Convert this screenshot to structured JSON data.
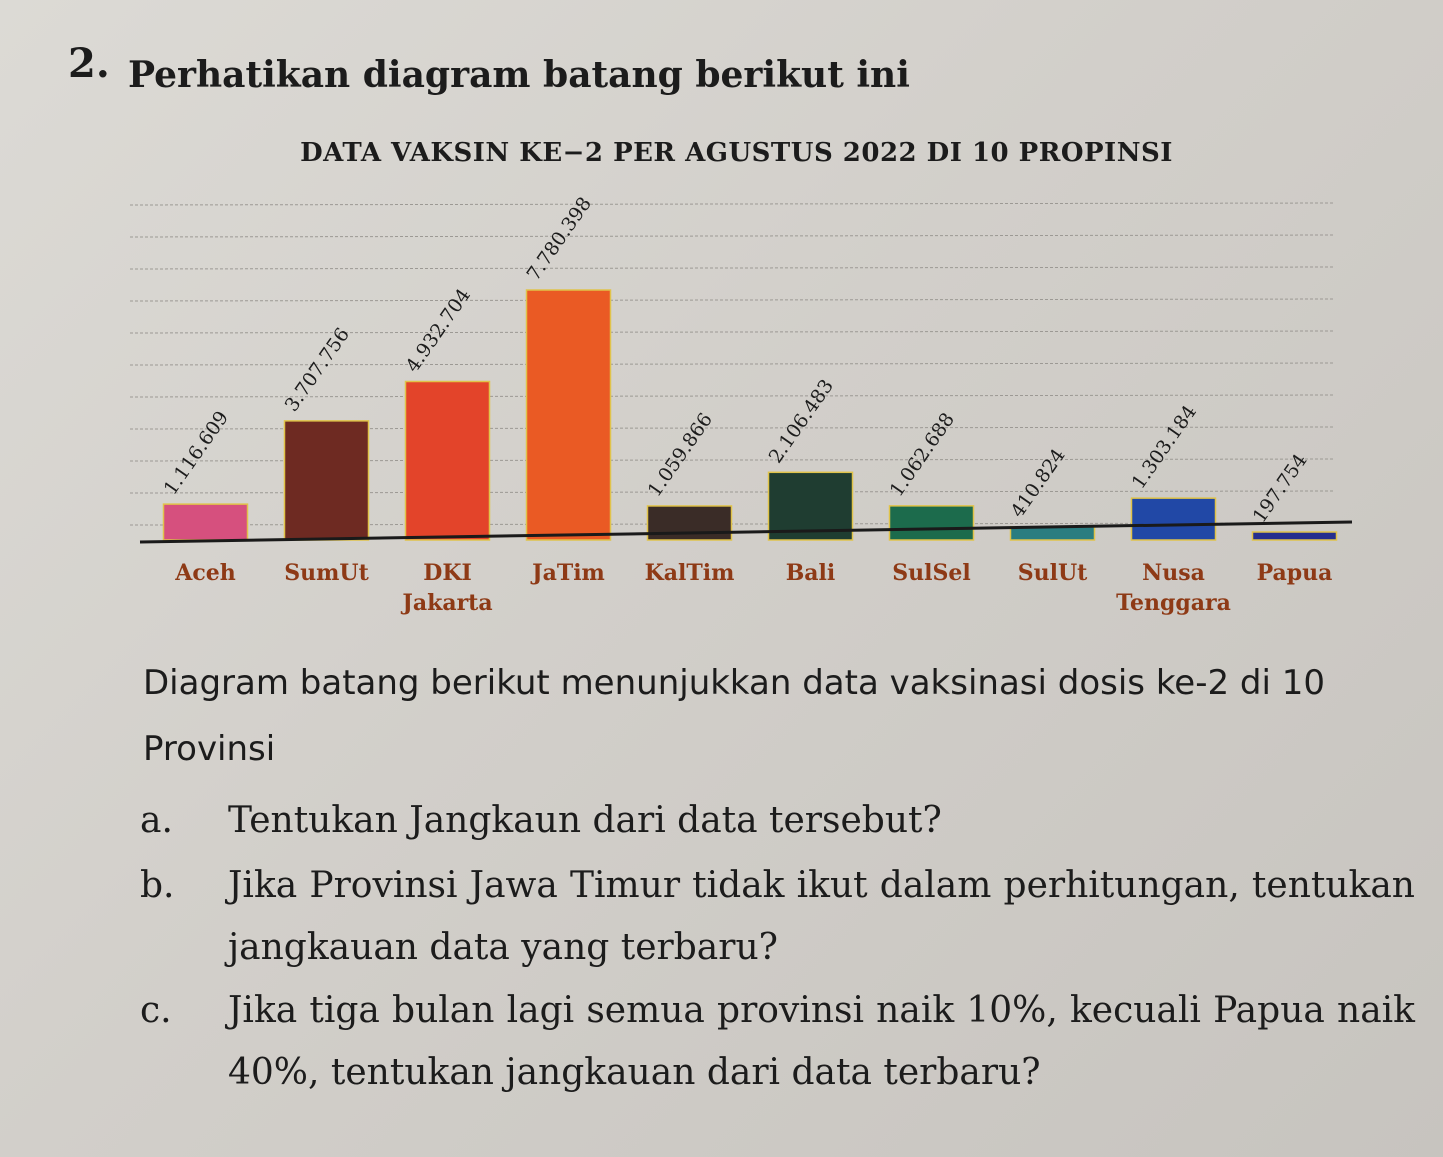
{
  "question": {
    "number": "2.",
    "intro": "Perhatikan diagram batang berikut ini"
  },
  "chart_data": {
    "type": "bar",
    "title": "DATA VAKSIN KE−2 PER AGUSTUS 2022 DI 10 PROPINSI",
    "categories": [
      "Aceh",
      "SumUt",
      "DKI Jakarta",
      "JaTim",
      "KalTim",
      "Bali",
      "SulSel",
      "SulUt",
      "Nusa Tenggara",
      "Papua"
    ],
    "category_lines": [
      [
        "Aceh"
      ],
      [
        "SumUt"
      ],
      [
        "DKI",
        "Jakarta"
      ],
      [
        "JaTim"
      ],
      [
        "KalTim"
      ],
      [
        "Bali"
      ],
      [
        "SulSel"
      ],
      [
        "SulUt"
      ],
      [
        "Nusa",
        "Tenggara"
      ],
      [
        "Papua"
      ]
    ],
    "values": [
      1116609,
      3707756,
      4932704,
      7780398,
      1059866,
      2106483,
      1062688,
      410824,
      1303184,
      197754
    ],
    "data_labels": [
      "1.116.609",
      "3.707.756",
      "4.932.704",
      "7.780.398",
      "1.059.866",
      "2.106.483",
      "1.062.688",
      "410.824",
      "1.303.184",
      "197.754"
    ],
    "bar_colors": [
      "#d6507e",
      "#6e2a22",
      "#e3442a",
      "#ea5a24",
      "#3a2c27",
      "#1f3d31",
      "#1c6b4c",
      "#2a7d80",
      "#2148a6",
      "#262f8e"
    ],
    "label_color": "#8e3a16",
    "grid": true,
    "xlabel": "",
    "ylabel": ""
  },
  "description": "Diagram batang berikut menunjukkan data vaksinasi dosis ke-2 di 10 Provinsi",
  "sub_questions": [
    {
      "letter": "a.",
      "text": "Tentukan Jangkaun dari data tersebut?"
    },
    {
      "letter": "b.",
      "text": "Jika Provinsi Jawa Timur tidak ikut dalam perhitungan, tentukan jangkauan data yang terbaru?"
    },
    {
      "letter": "c.",
      "text": "Jika tiga bulan lagi semua provinsi naik 10%, kecuali Papua naik 40%, tentukan jangkauan dari data terbaru?"
    }
  ]
}
